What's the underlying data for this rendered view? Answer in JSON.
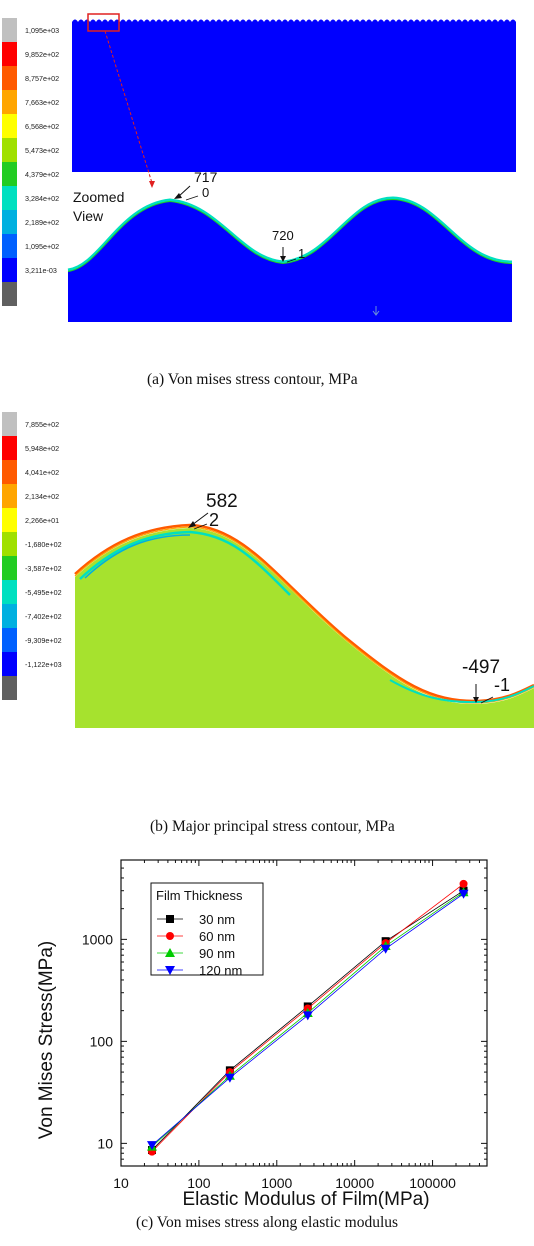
{
  "panel_a": {
    "legend_values": [
      "1,095e+03",
      "9,852e+02",
      "8,757e+02",
      "7,663e+02",
      "6,568e+02",
      "5,473e+02",
      "4,379e+02",
      "3,284e+02",
      "2,189e+02",
      "1,095e+02",
      "3,211e-03"
    ],
    "zoom_label": "Zoomed\nView",
    "peak_value": "717",
    "peak_node": "0",
    "valley_value": "720",
    "valley_node": "1",
    "caption": "(a) Von mises stress contour, MPa"
  },
  "panel_b": {
    "legend_values": [
      "7,855e+02",
      "5,948e+02",
      "4,041e+02",
      "2,134e+02",
      "2,266e+01",
      "-1,680e+02",
      "-3,587e+02",
      "-5,495e+02",
      "-7,402e+02",
      "-9,309e+02",
      "-1,122e+03"
    ],
    "peak_value": "582",
    "peak_node": "2",
    "valley_value": "-497",
    "valley_node": "-1",
    "caption": "(b) Major principal stress contour, MPa"
  },
  "colors": {
    "contour": [
      "#c0c0c0",
      "#ff0000",
      "#ff5a00",
      "#ffa500",
      "#ffff00",
      "#a0e000",
      "#22cc22",
      "#00e0c0",
      "#00b0e0",
      "#0060ff",
      "#0000ff",
      "#606060"
    ],
    "substrate": "#0000ff",
    "film_b": "#a6e22e"
  },
  "chart_data": {
    "type": "line",
    "xscale": "log",
    "yscale": "log",
    "xlabel": "Elastic Modulus of Film(MPa)",
    "ylabel": "Von Mises Stress(MPa)",
    "xlim": [
      10,
      500000
    ],
    "ylim": [
      6,
      6000
    ],
    "xticks": [
      "10",
      "100",
      "1000",
      "10000",
      "100000"
    ],
    "yticks": [
      "10",
      "100",
      "1000"
    ],
    "legend_title": "Film Thickness",
    "legend_position": "top-left",
    "x": [
      25,
      250,
      2500,
      25000,
      250000
    ],
    "series": [
      {
        "name": "30 nm",
        "marker": "square",
        "color": "#000000",
        "values": [
          8.6,
          52,
          220,
          960,
          3000
        ]
      },
      {
        "name": "60 nm",
        "marker": "circle",
        "color": "#ff0000",
        "values": [
          8.3,
          50,
          210,
          920,
          3500
        ]
      },
      {
        "name": "90 nm",
        "marker": "triangle-up",
        "color": "#00cc00",
        "values": [
          9.3,
          46,
          190,
          860,
          2900
        ]
      },
      {
        "name": "120 nm",
        "marker": "triangle-down",
        "color": "#0000ff",
        "values": [
          9.6,
          44,
          180,
          810,
          2800
        ]
      }
    ],
    "caption": "(c) Von mises stress along elastic modulus"
  }
}
